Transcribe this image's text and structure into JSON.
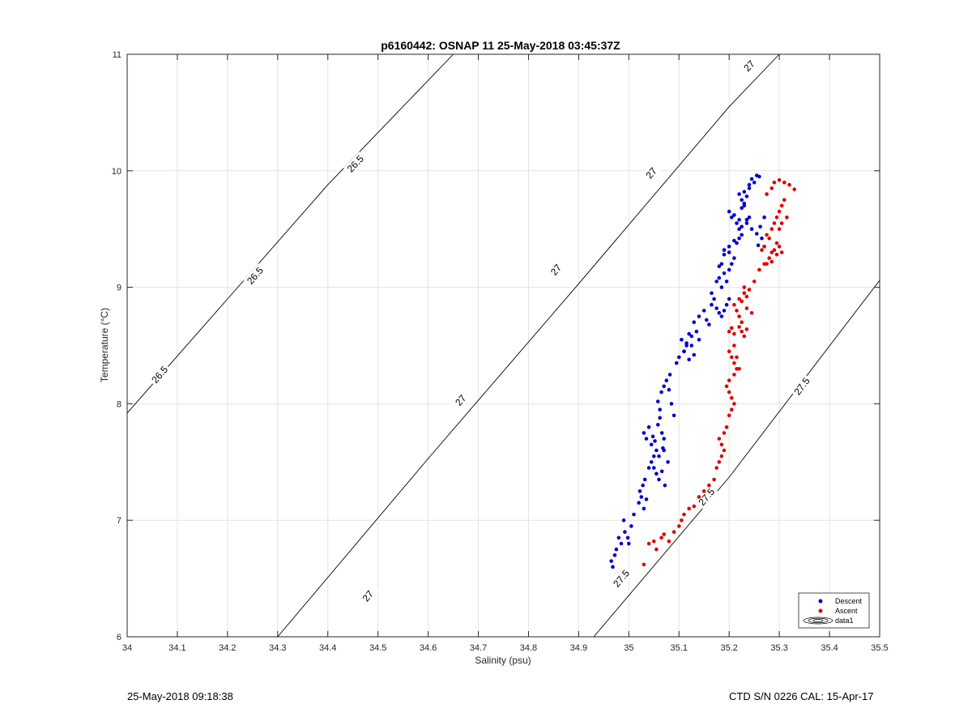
{
  "chart_data": {
    "type": "scatter",
    "title": "p6160442: OSNAP 11 25-May-2018 03:45:37Z",
    "xlabel": "Salinity (psu)",
    "ylabel": "Temperature (°C)",
    "xlim": [
      34,
      35.5
    ],
    "ylim": [
      6,
      11
    ],
    "xticks": [
      "34",
      "34.1",
      "34.2",
      "34.3",
      "34.4",
      "34.5",
      "34.6",
      "34.7",
      "34.8",
      "34.9",
      "35",
      "35.1",
      "35.2",
      "35.3",
      "35.4",
      "35.5"
    ],
    "yticks": [
      "6",
      "7",
      "8",
      "9",
      "10",
      "11"
    ],
    "grid": true,
    "legend": {
      "location": "bottom-right",
      "entries": [
        "Descent",
        "Ascent",
        "data1"
      ]
    },
    "colors": {
      "descent": "#0000cc",
      "ascent": "#dd0000",
      "contour": "#000000",
      "grid": "#e3e3e3"
    },
    "contours": [
      {
        "level": "26.5",
        "points": [
          [
            34.0,
            7.92
          ],
          [
            34.2,
            8.9
          ],
          [
            34.4,
            9.88
          ],
          [
            34.65,
            11.0
          ]
        ],
        "labels": [
          [
            34.065,
            8.25
          ],
          [
            34.255,
            9.1
          ],
          [
            34.455,
            10.06
          ]
        ]
      },
      {
        "level": "27",
        "points": [
          [
            34.3,
            6.0
          ],
          [
            34.6,
            7.53
          ],
          [
            34.9,
            9.03
          ],
          [
            35.2,
            10.55
          ],
          [
            35.3,
            11.0
          ]
        ],
        "labels": [
          [
            34.48,
            6.35
          ],
          [
            34.665,
            8.03
          ],
          [
            34.855,
            9.15
          ],
          [
            35.045,
            9.98
          ],
          [
            35.24,
            10.9
          ]
        ]
      },
      {
        "level": "27.5",
        "points": [
          [
            34.93,
            6.0
          ],
          [
            35.2,
            7.37
          ],
          [
            35.5,
            9.06
          ]
        ],
        "labels": [
          [
            34.985,
            6.5
          ],
          [
            35.155,
            7.2
          ],
          [
            35.345,
            8.15
          ]
        ]
      }
    ],
    "series": [
      {
        "name": "Descent",
        "x": [
          34.965,
          34.972,
          34.968,
          34.975,
          34.98,
          34.985,
          34.992,
          34.998,
          35.0,
          35.005,
          35.01,
          34.99,
          35.02,
          35.025,
          35.03,
          35.035,
          35.028,
          35.022,
          35.032,
          35.04,
          35.045,
          35.05,
          35.055,
          35.045,
          35.035,
          35.03,
          35.04,
          35.048,
          35.052,
          35.058,
          35.062,
          35.066,
          35.07,
          35.068,
          35.06,
          35.055,
          35.05,
          35.06,
          35.066,
          35.072,
          35.078,
          35.07,
          35.062,
          35.058,
          35.065,
          35.07,
          35.075,
          35.08,
          35.085,
          35.09,
          35.082,
          35.095,
          35.1,
          35.11,
          35.115,
          35.105,
          35.12,
          35.125,
          35.13,
          35.12,
          35.11,
          35.115,
          35.125,
          35.135,
          35.14,
          35.13,
          35.14,
          35.15,
          35.155,
          35.16,
          35.165,
          35.17,
          35.175,
          35.18,
          35.185,
          35.19,
          35.195,
          35.2,
          35.185,
          35.175,
          35.165,
          35.18,
          35.19,
          35.195,
          35.2,
          35.205,
          35.21,
          35.2,
          35.19,
          35.185,
          35.18,
          35.19,
          35.2,
          35.21,
          35.215,
          35.22,
          35.225,
          35.22,
          35.215,
          35.205,
          35.2,
          35.21,
          35.22,
          35.225,
          35.235,
          35.24,
          35.23,
          35.225,
          35.22,
          35.23,
          35.24,
          35.25,
          35.26,
          35.255,
          35.245,
          35.24,
          35.235,
          35.23,
          35.225,
          35.235,
          35.245,
          35.255,
          35.262,
          35.27,
          35.265,
          35.258
        ],
        "y": [
          6.65,
          6.7,
          6.6,
          6.75,
          6.85,
          6.8,
          6.9,
          6.85,
          6.8,
          6.95,
          7.05,
          7.0,
          7.15,
          7.2,
          7.1,
          7.18,
          7.3,
          7.25,
          7.35,
          7.45,
          7.5,
          7.55,
          7.6,
          7.65,
          7.7,
          7.75,
          7.8,
          7.72,
          7.68,
          7.82,
          7.88,
          7.75,
          7.7,
          7.62,
          7.55,
          7.4,
          7.45,
          7.35,
          7.42,
          7.3,
          7.5,
          7.6,
          7.95,
          8.02,
          8.1,
          8.15,
          8.2,
          8.12,
          8.0,
          7.9,
          8.25,
          8.35,
          8.4,
          8.45,
          8.5,
          8.55,
          8.6,
          8.5,
          8.42,
          8.38,
          8.45,
          8.52,
          8.58,
          8.62,
          8.55,
          8.7,
          8.75,
          8.8,
          8.72,
          8.68,
          8.85,
          8.9,
          8.82,
          8.78,
          8.75,
          8.8,
          8.85,
          8.9,
          9.0,
          9.05,
          8.95,
          9.08,
          9.12,
          9.05,
          9.15,
          9.2,
          9.25,
          9.3,
          9.32,
          9.2,
          9.18,
          9.28,
          9.35,
          9.4,
          9.38,
          9.42,
          9.45,
          9.5,
          9.55,
          9.6,
          9.65,
          9.62,
          9.58,
          9.52,
          9.55,
          9.6,
          9.7,
          9.75,
          9.8,
          9.82,
          9.85,
          9.9,
          9.95,
          9.96,
          9.93,
          9.88,
          9.78,
          9.72,
          9.68,
          9.58,
          9.5,
          9.46,
          9.52,
          9.6,
          9.42,
          9.36
        ]
      },
      {
        "name": "Ascent",
        "x": [
          35.03,
          35.04,
          35.05,
          35.055,
          35.065,
          35.07,
          35.08,
          35.09,
          35.1,
          35.105,
          35.11,
          35.12,
          35.13,
          35.14,
          35.15,
          35.16,
          35.17,
          35.175,
          35.18,
          35.185,
          35.19,
          35.185,
          35.18,
          35.19,
          35.195,
          35.2,
          35.205,
          35.21,
          35.205,
          35.2,
          35.195,
          35.2,
          35.21,
          35.215,
          35.21,
          35.205,
          35.2,
          35.21,
          35.215,
          35.22,
          35.2,
          35.205,
          35.21,
          35.22,
          35.225,
          35.23,
          35.235,
          35.225,
          35.22,
          35.215,
          35.21,
          35.22,
          35.23,
          35.235,
          35.24,
          35.23,
          35.225,
          35.235,
          35.245,
          35.25,
          35.26,
          35.27,
          35.28,
          35.285,
          35.29,
          35.3,
          35.305,
          35.295,
          35.285,
          35.275,
          35.27,
          35.275,
          35.285,
          35.29,
          35.295,
          35.3,
          35.305,
          35.31,
          35.295,
          35.28,
          35.27,
          35.265,
          35.275,
          35.285,
          35.29,
          35.3,
          35.31,
          35.32,
          35.33,
          35.315,
          35.305,
          35.3
        ],
        "y": [
          6.62,
          6.8,
          6.82,
          6.75,
          6.85,
          6.88,
          6.82,
          6.9,
          6.95,
          7.0,
          7.05,
          7.1,
          7.12,
          7.2,
          7.25,
          7.3,
          7.35,
          7.45,
          7.5,
          7.55,
          7.6,
          7.65,
          7.7,
          7.75,
          7.8,
          7.9,
          7.95,
          8.0,
          8.05,
          8.1,
          8.15,
          8.2,
          8.25,
          8.3,
          8.35,
          8.4,
          8.45,
          8.5,
          8.4,
          8.3,
          8.62,
          8.65,
          8.6,
          8.66,
          8.62,
          8.58,
          8.64,
          8.7,
          8.75,
          8.8,
          8.85,
          8.9,
          8.95,
          8.92,
          8.98,
          9.0,
          8.88,
          8.82,
          8.78,
          9.05,
          9.15,
          9.2,
          9.25,
          9.3,
          9.32,
          9.35,
          9.3,
          9.28,
          9.22,
          9.2,
          9.35,
          9.45,
          9.5,
          9.55,
          9.6,
          9.65,
          9.7,
          9.75,
          9.38,
          9.42,
          9.35,
          9.32,
          9.8,
          9.85,
          9.9,
          9.92,
          9.9,
          9.88,
          9.84,
          9.6,
          9.55,
          9.5
        ]
      }
    ]
  },
  "footer": {
    "left": "25-May-2018 09:18:38",
    "right": "CTD S/N 0226  CAL: 15-Apr-17"
  }
}
